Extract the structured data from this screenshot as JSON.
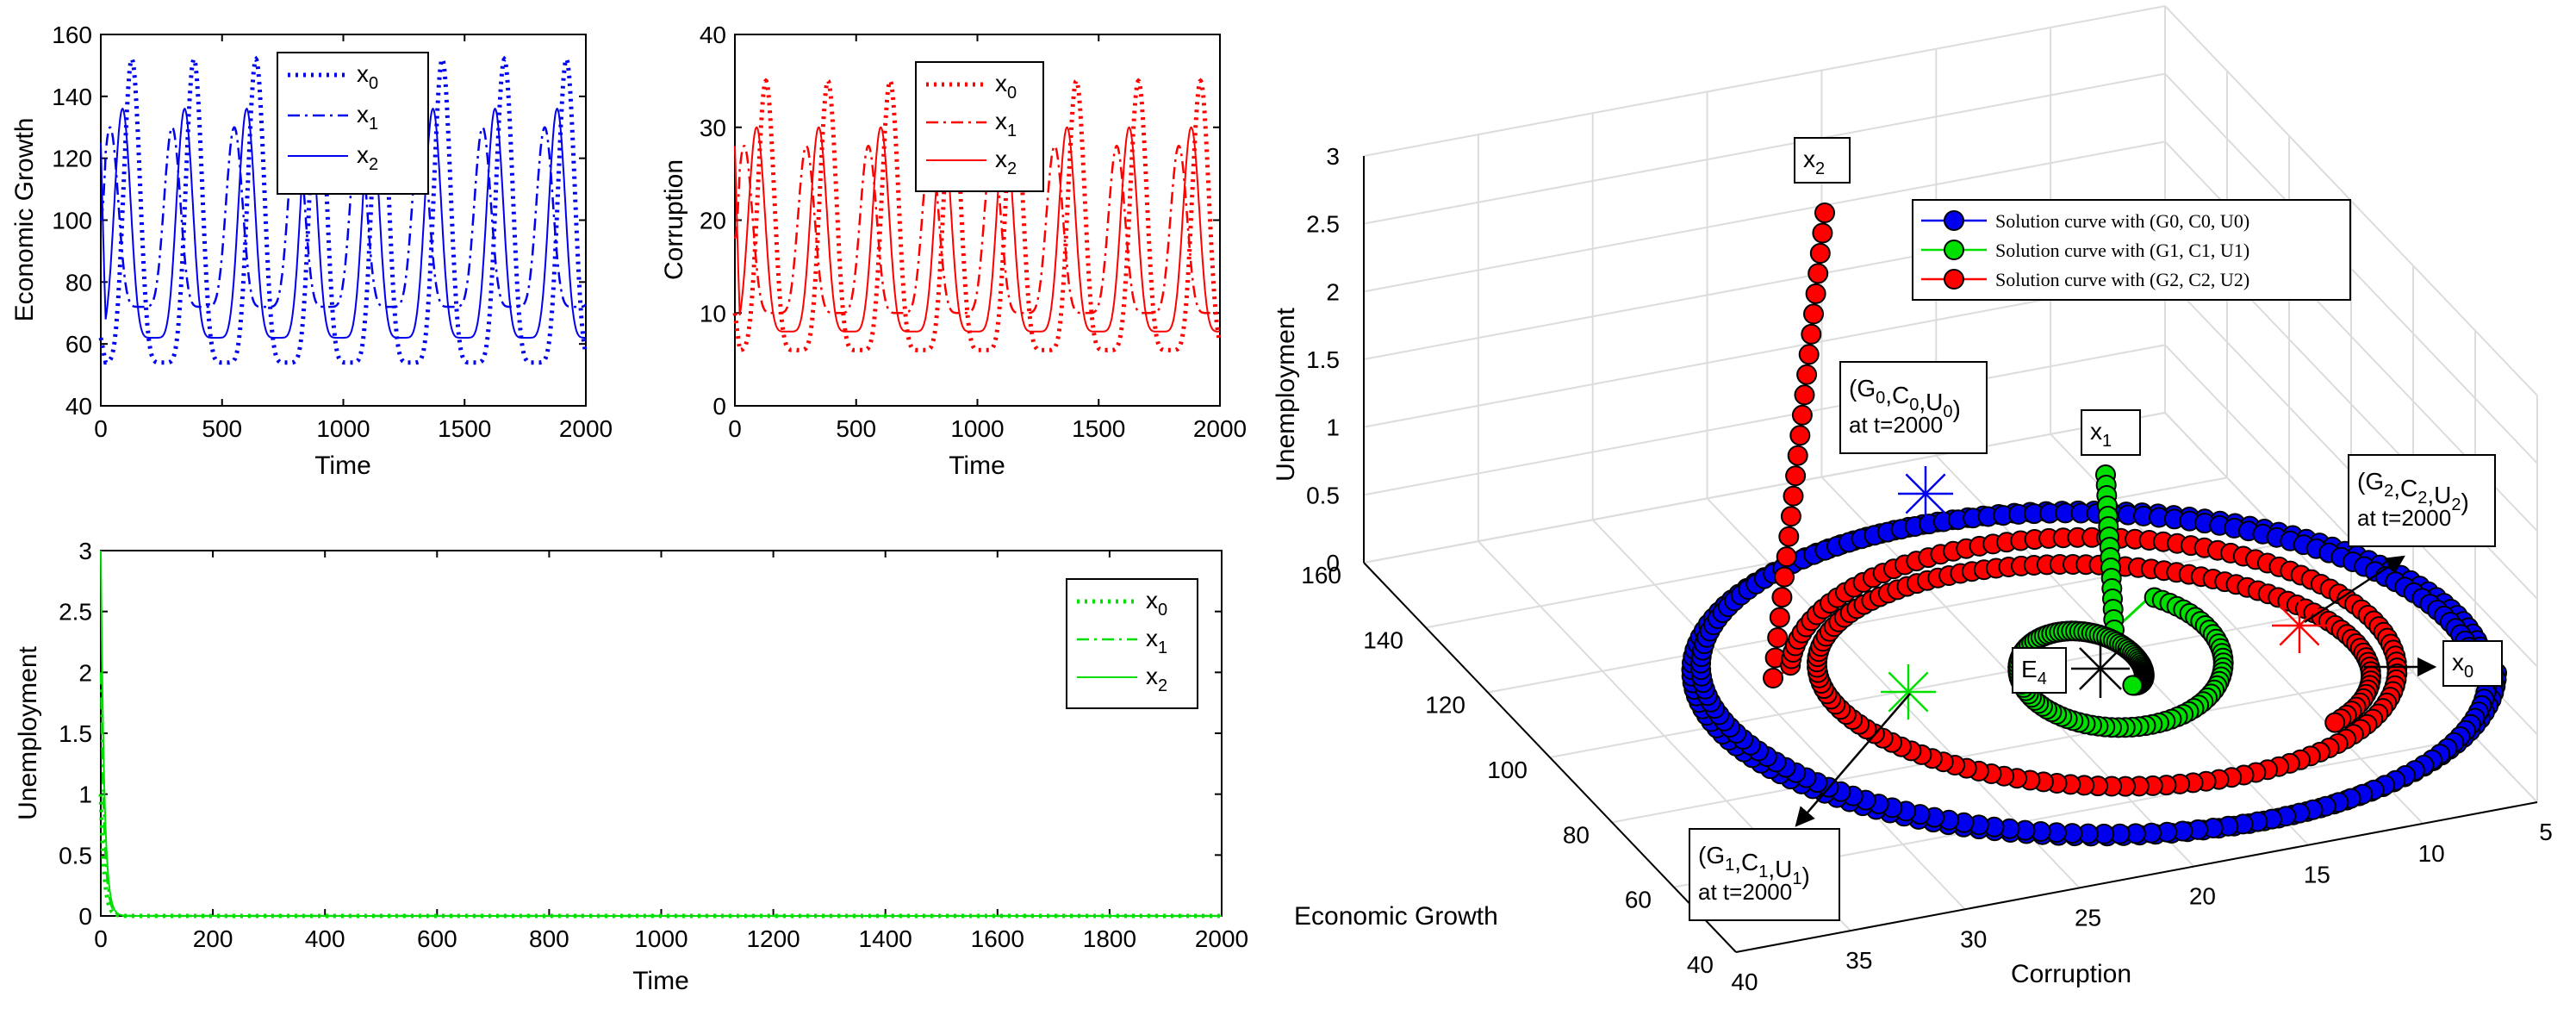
{
  "colors": {
    "blue": "#0000ee",
    "red": "#ff0000",
    "green": "#00e000",
    "black": "#000000"
  },
  "chart_data": [
    {
      "type": "line",
      "title": "",
      "xlabel": "Time",
      "ylabel": "Economic Growth",
      "xlim": [
        0,
        2000
      ],
      "ylim": [
        40,
        160
      ],
      "xticks": [
        "0",
        "500",
        "1000",
        "1500",
        "2000"
      ],
      "yticks": [
        "40",
        "60",
        "80",
        "100",
        "120",
        "140",
        "160"
      ],
      "legend": [
        "x0",
        "x1",
        "x2"
      ],
      "legend_position": "top-right",
      "series": [
        {
          "name": "x0",
          "style": "dotted",
          "period": 256,
          "min": 54,
          "max": 152,
          "start": 62
        },
        {
          "name": "x1",
          "style": "dashdot",
          "period": 256,
          "min": 72,
          "max": 130,
          "start": 100
        },
        {
          "name": "x2",
          "style": "solid",
          "period": 256,
          "min": 62,
          "max": 136,
          "start": 125
        }
      ]
    },
    {
      "type": "line",
      "title": "",
      "xlabel": "Time",
      "ylabel": "Corruption",
      "xlim": [
        0,
        2000
      ],
      "ylim": [
        0,
        40
      ],
      "xticks": [
        "0",
        "500",
        "1000",
        "1500",
        "2000"
      ],
      "yticks": [
        "0",
        "10",
        "20",
        "30",
        "40"
      ],
      "legend": [
        "x0",
        "x1",
        "x2"
      ],
      "legend_position": "top-right",
      "series": [
        {
          "name": "x0",
          "style": "dotted",
          "period": 256,
          "min": 6,
          "max": 35,
          "start": 10
        },
        {
          "name": "x1",
          "style": "dashdot",
          "period": 256,
          "min": 10,
          "max": 28,
          "start": 18
        },
        {
          "name": "x2",
          "style": "solid",
          "period": 256,
          "min": 8,
          "max": 30,
          "start": 28
        }
      ]
    },
    {
      "type": "line",
      "title": "",
      "xlabel": "Time",
      "ylabel": "Unemployment",
      "xlim": [
        0,
        2000
      ],
      "ylim": [
        0,
        3
      ],
      "xticks": [
        "0",
        "200",
        "400",
        "600",
        "800",
        "1000",
        "1200",
        "1400",
        "1600",
        "1800",
        "2000"
      ],
      "yticks": [
        "0",
        "0.5",
        "1",
        "1.5",
        "2",
        "2.5",
        "3"
      ],
      "legend": [
        "x0",
        "x1",
        "x2"
      ],
      "legend_position": "top-right",
      "series": [
        {
          "name": "x0",
          "style": "dotted",
          "start": 1.0,
          "decay": 6
        },
        {
          "name": "x1",
          "style": "dashdot",
          "start": 2.0,
          "decay": 6
        },
        {
          "name": "x2",
          "style": "solid",
          "start": 3.0,
          "decay": 6
        }
      ]
    },
    {
      "type": "scatter",
      "subtype": "3d-phase-portrait",
      "xlabel": "Corruption",
      "ylabel": "Economic Growth",
      "zlabel": "Unemployment",
      "xlim": [
        5,
        40
      ],
      "ylim": [
        40,
        160
      ],
      "zlim": [
        0,
        3
      ],
      "xticks": [
        "5",
        "10",
        "15",
        "20",
        "25",
        "30",
        "35",
        "40"
      ],
      "yticks": [
        "40",
        "60",
        "80",
        "100",
        "120",
        "140",
        "160"
      ],
      "zticks": [
        "0",
        "0.5",
        "1",
        "1.5",
        "2",
        "2.5",
        "3"
      ],
      "legend": [
        "Solution curve with (G0, C0, U0)",
        "Solution curve with (G1, C1, U1)",
        "Solution curve with (G2, C2, U2)"
      ],
      "legend_position": "top",
      "series": [
        {
          "name": "Solution curve with (G0, C0, U0)",
          "start_U": 0.0
        },
        {
          "name": "Solution curve with (G1, C1, U1)",
          "start_U": 0.6
        },
        {
          "name": "Solution curve with (G2, C2, U2)",
          "start_U": 2.6
        }
      ],
      "annotations": {
        "x2": "x",
        "x2_sub": "2",
        "x1": "x",
        "x1_sub": "1",
        "x0": "x",
        "x0_sub": "0",
        "e4": "E",
        "e4_sub": "4",
        "g0_line1": "(G0,C0,U0)",
        "g0_line2": "at t=2000",
        "g1_line1": "(G1,C1,U1)",
        "g1_line2": "at t=2000",
        "g2_line1": "(G2,C2,U2)",
        "g2_line2": "at t=2000"
      }
    }
  ]
}
